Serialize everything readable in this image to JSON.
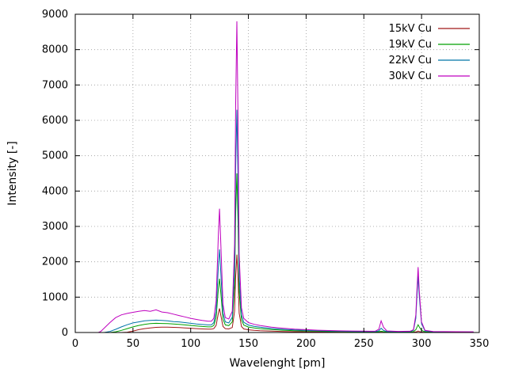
{
  "chart_data": {
    "type": "line",
    "title": "",
    "xlabel": "Wavelenght [pm]",
    "ylabel": "Intensity [-]",
    "xlim": [
      0,
      350
    ],
    "ylim": [
      0,
      9000
    ],
    "xticks": [
      0,
      50,
      100,
      150,
      200,
      250,
      300,
      350
    ],
    "yticks": [
      0,
      1000,
      2000,
      3000,
      4000,
      5000,
      6000,
      7000,
      8000,
      9000
    ],
    "grid": true,
    "grid_style": "dotted",
    "legend_position": "top-right",
    "x": [
      0,
      10,
      20,
      22,
      25,
      30,
      35,
      40,
      45,
      50,
      55,
      60,
      65,
      70,
      75,
      80,
      85,
      90,
      95,
      100,
      105,
      110,
      115,
      118,
      120,
      122,
      124,
      125,
      126,
      128,
      130,
      133,
      136,
      138,
      139,
      140,
      141,
      142,
      144,
      146,
      150,
      155,
      160,
      170,
      180,
      190,
      200,
      210,
      220,
      230,
      240,
      250,
      255,
      260,
      263,
      265,
      267,
      270,
      280,
      290,
      293,
      295,
      296,
      297,
      298,
      300,
      303,
      310,
      320,
      330,
      340,
      345
    ],
    "series": [
      {
        "name": "15kV Cu",
        "color": "#a01818",
        "values": [
          0,
          0,
          0,
          0,
          0,
          0,
          0,
          0,
          10,
          40,
          80,
          110,
          130,
          145,
          150,
          150,
          145,
          140,
          130,
          120,
          110,
          100,
          95,
          95,
          110,
          200,
          550,
          680,
          500,
          170,
          110,
          100,
          140,
          600,
          1600,
          2200,
          1500,
          550,
          170,
          100,
          75,
          60,
          50,
          38,
          28,
          22,
          18,
          15,
          12,
          10,
          9,
          8,
          7,
          7,
          8,
          10,
          8,
          7,
          6,
          6,
          8,
          15,
          25,
          40,
          28,
          12,
          7,
          5,
          4,
          4,
          3,
          3
        ]
      },
      {
        "name": "19kV Cu",
        "color": "#00a000",
        "values": [
          0,
          0,
          0,
          0,
          0,
          0,
          20,
          60,
          110,
          160,
          200,
          230,
          250,
          260,
          255,
          250,
          240,
          230,
          215,
          200,
          185,
          170,
          160,
          160,
          200,
          420,
          1250,
          1520,
          1150,
          380,
          215,
          195,
          300,
          1300,
          3400,
          4500,
          3100,
          1150,
          360,
          210,
          155,
          130,
          110,
          85,
          65,
          52,
          42,
          35,
          30,
          26,
          22,
          20,
          18,
          19,
          22,
          35,
          25,
          18,
          15,
          16,
          25,
          80,
          150,
          220,
          160,
          60,
          20,
          12,
          10,
          9,
          8,
          8
        ]
      },
      {
        "name": "22kV Cu",
        "color": "#0074a8",
        "values": [
          0,
          0,
          0,
          0,
          0,
          30,
          90,
          160,
          220,
          270,
          300,
          330,
          340,
          350,
          340,
          330,
          310,
          300,
          280,
          260,
          240,
          225,
          215,
          215,
          280,
          600,
          1900,
          2350,
          1750,
          550,
          300,
          270,
          430,
          1800,
          4700,
          6300,
          4300,
          1600,
          500,
          290,
          210,
          175,
          150,
          115,
          90,
          72,
          60,
          50,
          42,
          36,
          32,
          28,
          26,
          28,
          45,
          120,
          60,
          30,
          24,
          26,
          60,
          400,
          1000,
          1600,
          1050,
          250,
          45,
          22,
          18,
          16,
          15,
          14
        ]
      },
      {
        "name": "30kV Cu",
        "color": "#bf00bf",
        "values": [
          0,
          0,
          0,
          30,
          120,
          280,
          420,
          500,
          540,
          570,
          600,
          620,
          600,
          640,
          580,
          560,
          520,
          480,
          440,
          400,
          370,
          340,
          320,
          320,
          400,
          900,
          2800,
          3500,
          2600,
          800,
          420,
          380,
          600,
          2500,
          6500,
          8800,
          6000,
          2200,
          700,
          400,
          280,
          230,
          200,
          150,
          120,
          95,
          80,
          65,
          55,
          48,
          42,
          38,
          36,
          40,
          90,
          330,
          150,
          45,
          32,
          35,
          80,
          500,
          1200,
          1850,
          1200,
          300,
          60,
          30,
          25,
          22,
          20,
          20
        ]
      }
    ]
  },
  "layout_colors": {
    "border": "#000000",
    "grid": "#9a9a9a",
    "background": "#ffffff"
  }
}
